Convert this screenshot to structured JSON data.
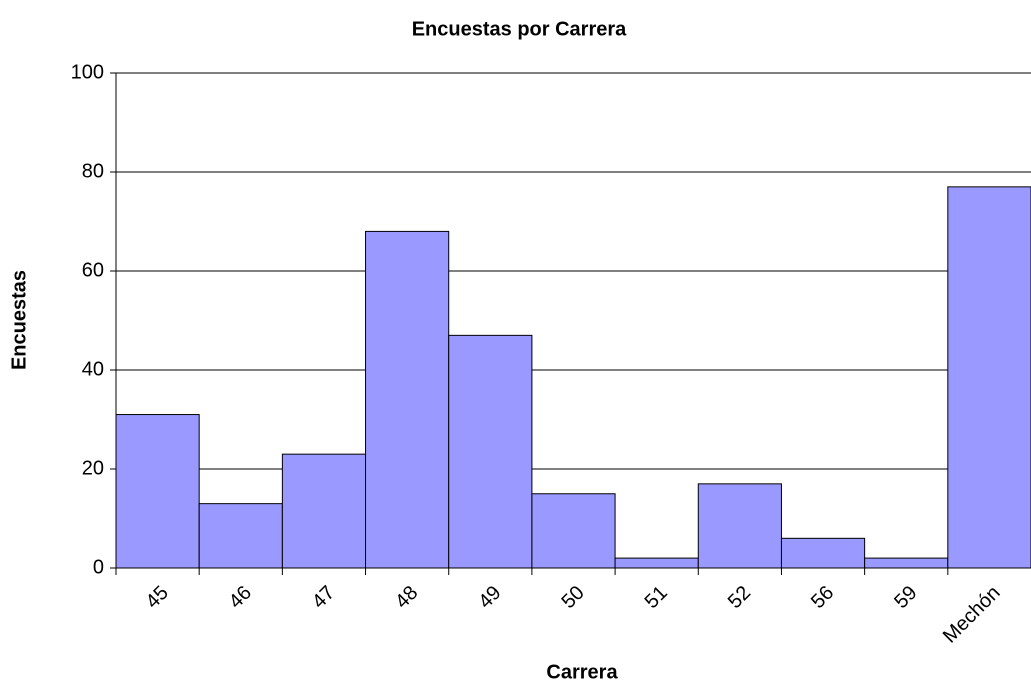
{
  "chart_data": {
    "type": "bar",
    "title": "Encuestas por Carrera",
    "x_label": "Carrera",
    "y_label": "Encuestas",
    "categories": [
      "45",
      "46",
      "47",
      "48",
      "49",
      "50",
      "51",
      "52",
      "56",
      "59",
      "Mechón"
    ],
    "values": [
      31,
      13,
      23,
      68,
      47,
      15,
      2,
      17,
      6,
      2,
      77
    ],
    "color": "#9999ff",
    "ylim": [
      0,
      100
    ],
    "yticks": [
      0,
      20,
      40,
      60,
      80,
      100
    ],
    "grid": true
  }
}
